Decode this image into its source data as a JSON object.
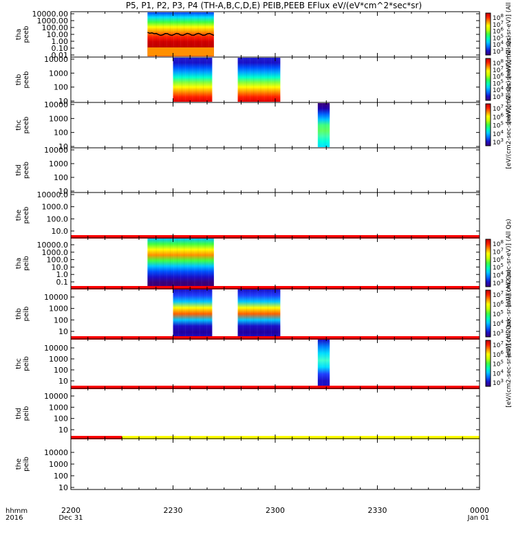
{
  "title": "P5, P1, P2, P3, P4 (TH-A,B,C,D,E) PEIB,PEEB EFlux eV/(eV*cm^2*sec*sr)",
  "colors": {
    "spectrum": [
      "#3a0078",
      "#1a10c8",
      "#0070ff",
      "#00c8ff",
      "#00ffb0",
      "#40ff40",
      "#c8ff00",
      "#ffff00",
      "#ff9000",
      "#ff2000",
      "#c00000"
    ],
    "red_bar": "#ff0000",
    "yellow_bar": "#ffff00",
    "curve": "#000000"
  },
  "chart_data": {
    "type": "heatmap",
    "xaxis": {
      "row_label": "hhmm",
      "year_label": "2016",
      "ticks": [
        {
          "t": 0,
          "label": "2200",
          "date": "Dec 31"
        },
        {
          "t": 30,
          "label": "2230",
          "date": ""
        },
        {
          "t": 60,
          "label": "2300",
          "date": ""
        },
        {
          "t": 90,
          "label": "2330",
          "date": ""
        },
        {
          "t": 120,
          "label": "0000",
          "date": "Jan 01"
        }
      ],
      "range_minutes": [
        0,
        120
      ]
    },
    "panels": [
      {
        "probe": "tha",
        "product": "peeb",
        "ylabels": [
          "10000.00",
          "1000.00",
          "100.00",
          "10.00",
          "1.00",
          "0.10",
          "0.01"
        ],
        "cbar": true,
        "cbar_ticks": [
          "10^8",
          "10^7",
          "10^6",
          "10^5",
          "10^4",
          "10^3"
        ],
        "cbar_label": "[eV/(cm2-sec-sr-eV)] (All Qs)",
        "data": [
          {
            "start": 22.5,
            "end": 42.0
          }
        ],
        "flag_bar": null
      },
      {
        "probe": "thb",
        "product": "peeb",
        "ylabels": [
          "10000",
          "1000",
          "100",
          "10"
        ],
        "cbar": true,
        "cbar_ticks": [
          "10^8",
          "10^7",
          "10^6",
          "10^5",
          "10^4",
          "10^3"
        ],
        "cbar_label": "[eV/(cm2-sec-sr-eV)] (All Qs)",
        "data": [
          {
            "start": 30.0,
            "end": 41.5
          },
          {
            "start": 49.0,
            "end": 61.5
          }
        ],
        "flag_bar": null
      },
      {
        "probe": "thc",
        "product": "peeb",
        "ylabels": [
          "10000",
          "1000",
          "100",
          "10"
        ],
        "cbar": true,
        "cbar_ticks": [
          "10^7",
          "10^6",
          "10^5",
          "10^4",
          "10^3"
        ],
        "cbar_label": "[eV/(cm2-sec-sr-eV)] (All Qs)",
        "data": [
          {
            "start": 72.5,
            "end": 76.0
          }
        ],
        "flag_bar": null
      },
      {
        "probe": "thd",
        "product": "peeb",
        "ylabels": [
          "10000",
          "1000",
          "100",
          "10"
        ],
        "cbar": false,
        "data": [],
        "flag_bar": null
      },
      {
        "probe": "the",
        "product": "peeb",
        "ylabels": [
          "10000.0",
          "1000.0",
          "100.0",
          "10.0"
        ],
        "cbar": false,
        "data": [],
        "flag_bar": "red"
      },
      {
        "probe": "tha",
        "product": "peib",
        "ylabels": [
          "10000.0",
          "1000.0",
          "100.0",
          "10.0",
          "1.0",
          "0.1"
        ],
        "cbar": true,
        "cbar_ticks": [
          "10^8",
          "10^7",
          "10^6",
          "10^5",
          "10^4",
          "10^3"
        ],
        "cbar_label": "[eV/(cm2-sec-sr-eV)] (All Qs)",
        "data": [
          {
            "start": 22.5,
            "end": 42.0
          }
        ],
        "flag_bar": "red"
      },
      {
        "probe": "thb",
        "product": "peib",
        "ylabels": [
          "10000",
          "1000",
          "100",
          "10"
        ],
        "cbar": true,
        "cbar_ticks": [
          "10^7",
          "10^6",
          "10^5",
          "10^4",
          "10^3"
        ],
        "cbar_label": "[eV/(cm2-sec-sr-eV)] (All Qs)",
        "data": [
          {
            "start": 30.0,
            "end": 41.5
          },
          {
            "start": 49.0,
            "end": 61.5
          }
        ],
        "flag_bar": "red"
      },
      {
        "probe": "thc",
        "product": "peib",
        "ylabels": [
          "10000",
          "1000",
          "100",
          "10"
        ],
        "cbar": true,
        "cbar_ticks": [
          "10^7",
          "10^6",
          "10^5",
          "10^4",
          "10^3"
        ],
        "cbar_label": "[eV/(cm2-sec-sr-eV)] (All Qs)",
        "data": [
          {
            "start": 72.5,
            "end": 76.0
          }
        ],
        "flag_bar": "red"
      },
      {
        "probe": "thd",
        "product": "peib",
        "ylabels": [
          "10000",
          "1000",
          "100",
          "10"
        ],
        "cbar": false,
        "data": [],
        "flag_bar": "red_yellow"
      },
      {
        "probe": "the",
        "product": "peib",
        "ylabels": [
          "10000",
          "1000",
          "100",
          "10"
        ],
        "cbar": false,
        "data": [],
        "flag_bar": null
      }
    ]
  }
}
